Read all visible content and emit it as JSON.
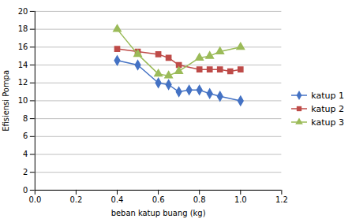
{
  "chart_data": {
    "type": "line",
    "xlabel": "beban katup buang (kg)",
    "ylabel": "Efisiensi Pompa",
    "series": [
      {
        "name": "katup 1",
        "color": "#4472C4",
        "marker": "diamond",
        "x": [
          0.4,
          0.5,
          0.6,
          0.65,
          0.7,
          0.75,
          0.8,
          0.85,
          0.9,
          1.0
        ],
        "values": [
          14.5,
          14.0,
          12.0,
          11.8,
          11.0,
          11.2,
          11.2,
          10.8,
          10.5,
          10.0
        ]
      },
      {
        "name": "katup 2",
        "color": "#BE4B48",
        "marker": "square",
        "x": [
          0.4,
          0.5,
          0.6,
          0.65,
          0.7,
          0.8,
          0.85,
          0.9,
          0.95,
          1.0
        ],
        "values": [
          15.8,
          15.5,
          15.2,
          14.8,
          14.0,
          13.5,
          13.5,
          13.5,
          13.3,
          13.5
        ]
      },
      {
        "name": "katup 3",
        "color": "#9BBB59",
        "marker": "triangle",
        "x": [
          0.4,
          0.5,
          0.6,
          0.65,
          0.7,
          0.8,
          0.85,
          0.9,
          1.0
        ],
        "values": [
          18.0,
          15.2,
          13.0,
          12.8,
          13.3,
          14.8,
          15.0,
          15.5,
          16.0
        ]
      }
    ],
    "xlim": [
      0,
      1.2
    ],
    "ylim": [
      0,
      20
    ],
    "xticks": [
      {
        "value": 0,
        "label": "0.0"
      },
      0.2,
      0.4,
      0.6,
      0.8,
      {
        "value": 1.0,
        "label": "1.0"
      },
      1.2
    ],
    "yticks": [
      0,
      2,
      4,
      6,
      8,
      10,
      12,
      14,
      16,
      18,
      20
    ],
    "grid": "y",
    "legend": "right"
  }
}
